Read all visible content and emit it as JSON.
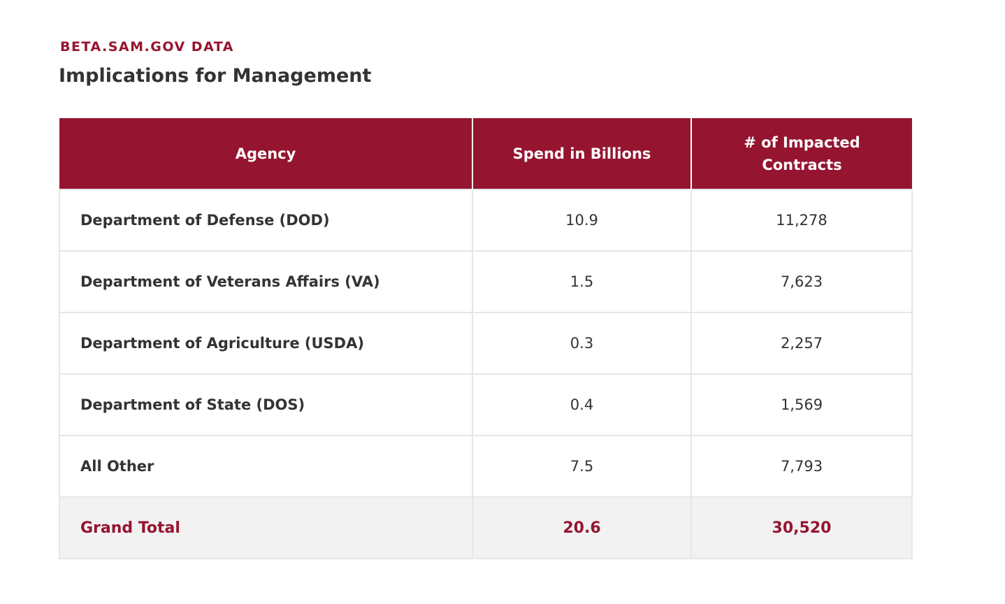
{
  "eyebrow": "BETA.SAM.GOV DATA",
  "title": "Implications for Management",
  "table": {
    "headers": [
      "Agency",
      "Spend in Billions",
      "# of Impacted Contracts"
    ],
    "rows": [
      [
        "Department of Defense (DOD)",
        "10.9",
        "11,278"
      ],
      [
        "Department of Veterans Affairs (VA)",
        "1.5",
        "7,623"
      ],
      [
        "Department of Agriculture (USDA)",
        "0.3",
        "2,257"
      ],
      [
        "Department of State (DOS)",
        "0.4",
        "1,569"
      ],
      [
        "All Other",
        "7.5",
        "7,793"
      ]
    ],
    "total": [
      "Grand Total",
      "20.6",
      "30,520"
    ]
  },
  "colors": {
    "accent": "#951530",
    "total_bg": "#f2f2f2",
    "text": "#333333"
  }
}
